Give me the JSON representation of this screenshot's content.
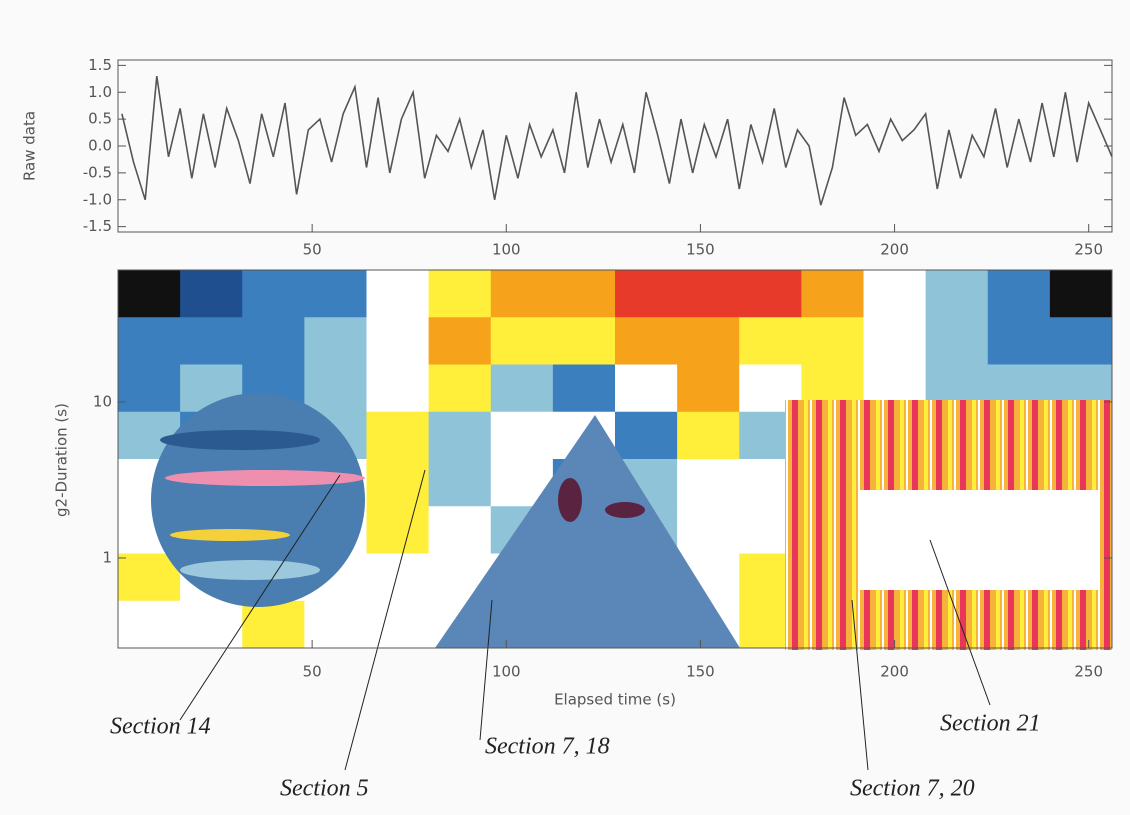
{
  "chart_data": [
    {
      "type": "line",
      "ylabel": "Raw data",
      "color": "#555555",
      "x": [
        1,
        4,
        7,
        10,
        13,
        16,
        19,
        22,
        25,
        28,
        31,
        34,
        37,
        40,
        43,
        46,
        49,
        52,
        55,
        58,
        61,
        64,
        67,
        70,
        73,
        76,
        79,
        82,
        85,
        88,
        91,
        94,
        97,
        100,
        103,
        106,
        109,
        112,
        115,
        118,
        121,
        124,
        127,
        130,
        133,
        136,
        139,
        142,
        145,
        148,
        151,
        154,
        157,
        160,
        163,
        166,
        169,
        172,
        175,
        178,
        181,
        184,
        187,
        190,
        193,
        196,
        199,
        202,
        205,
        208,
        211,
        214,
        217,
        220,
        223,
        226,
        229,
        232,
        235,
        238,
        241,
        244,
        247,
        250,
        253,
        256
      ],
      "values": [
        0.6,
        -0.3,
        -1.0,
        1.3,
        -0.2,
        0.7,
        -0.6,
        0.6,
        -0.4,
        0.7,
        0.1,
        -0.7,
        0.6,
        -0.2,
        0.8,
        -0.9,
        0.3,
        0.5,
        -0.3,
        0.6,
        1.1,
        -0.4,
        0.9,
        -0.5,
        0.5,
        1.0,
        -0.6,
        0.2,
        -0.1,
        0.5,
        -0.4,
        0.3,
        -1.0,
        0.2,
        -0.6,
        0.4,
        -0.2,
        0.3,
        -0.5,
        1.0,
        -0.4,
        0.5,
        -0.3,
        0.4,
        -0.5,
        1.0,
        0.2,
        -0.7,
        0.5,
        -0.5,
        0.4,
        -0.2,
        0.5,
        -0.8,
        0.4,
        -0.3,
        0.7,
        -0.4,
        0.3,
        0.0,
        -1.1,
        -0.4,
        0.9,
        0.2,
        0.4,
        -0.1,
        0.5,
        0.1,
        0.3,
        0.6,
        -0.8,
        0.3,
        -0.6,
        0.2,
        -0.2,
        0.7,
        -0.4,
        0.5,
        -0.3,
        0.8,
        -0.2,
        1.0,
        -0.3,
        0.8,
        0.3,
        -0.2
      ],
      "xlim": [
        0,
        256
      ],
      "xticks": [
        50,
        100,
        150,
        200,
        250
      ],
      "ylim": [
        -1.6,
        1.6
      ],
      "yticks": [
        -1.5,
        {
          "value": -1,
          "label": "-1.0"
        },
        -0.5,
        {
          "value": 0,
          "label": "0.0"
        },
        0.5,
        {
          "value": 1,
          "label": "1.0"
        },
        1.5
      ]
    },
    {
      "type": "heatmap",
      "xlabel": "Elapsed time (s)",
      "ylabel": "g2-Duration (s)",
      "xlim": [
        0,
        256
      ],
      "xticks": [
        50,
        100,
        150,
        200,
        250
      ],
      "ylim": [
        0.265,
        70
      ],
      "yticks": [
        1,
        10
      ],
      "ylog": true,
      "colorscale": [
        "#111111",
        "#1f4f8f",
        "#3b7fbf",
        "#8fc3d8",
        "#ffffff",
        "#ffef3a",
        "#f7a21b",
        "#e83a2a",
        "#ef5fa0"
      ],
      "z": [
        [
          0.05,
          0.1,
          0.25,
          0.3,
          0.45,
          0.6,
          0.7,
          0.8,
          0.9,
          0.92,
          0.85,
          0.7,
          0.55,
          0.4,
          0.25,
          0.05
        ],
        [
          0.25,
          0.3,
          0.3,
          0.35,
          0.5,
          0.75,
          0.6,
          0.65,
          0.7,
          0.7,
          0.65,
          0.6,
          0.5,
          0.4,
          0.3,
          0.3
        ],
        [
          0.3,
          0.35,
          0.3,
          0.4,
          0.55,
          0.6,
          0.35,
          0.3,
          0.55,
          0.7,
          0.5,
          0.6,
          0.45,
          0.4,
          0.35,
          0.4
        ],
        [
          0.4,
          0.3,
          0.35,
          0.4,
          0.6,
          0.4,
          0.5,
          0.45,
          0.3,
          0.6,
          0.4,
          0.5,
          0.7,
          0.6,
          0.65,
          0.6
        ],
        [
          0.5,
          0.3,
          0.3,
          0.45,
          0.65,
          0.35,
          0.55,
          0.3,
          0.35,
          0.55,
          0.5,
          0.6,
          0.75,
          0.55,
          0.6,
          0.65
        ],
        [
          0.55,
          0.3,
          0.45,
          0.5,
          0.6,
          0.5,
          0.4,
          0.35,
          0.4,
          0.5,
          0.55,
          0.7,
          0.65,
          0.5,
          0.6,
          0.55
        ],
        [
          0.6,
          0.45,
          0.55,
          0.5,
          0.55,
          0.5,
          0.45,
          0.5,
          0.4,
          0.45,
          0.6,
          0.7,
          0.6,
          0.6,
          0.65,
          0.6
        ],
        [
          0.55,
          0.5,
          0.6,
          0.5,
          0.55,
          0.5,
          0.45,
          0.55,
          0.45,
          0.5,
          0.6,
          0.7,
          0.65,
          0.6,
          0.7,
          0.65
        ]
      ],
      "annotations": [
        "Section 14",
        "Section 5",
        "Section 7, 18",
        "Section 7, 20",
        "Section 21"
      ]
    }
  ]
}
